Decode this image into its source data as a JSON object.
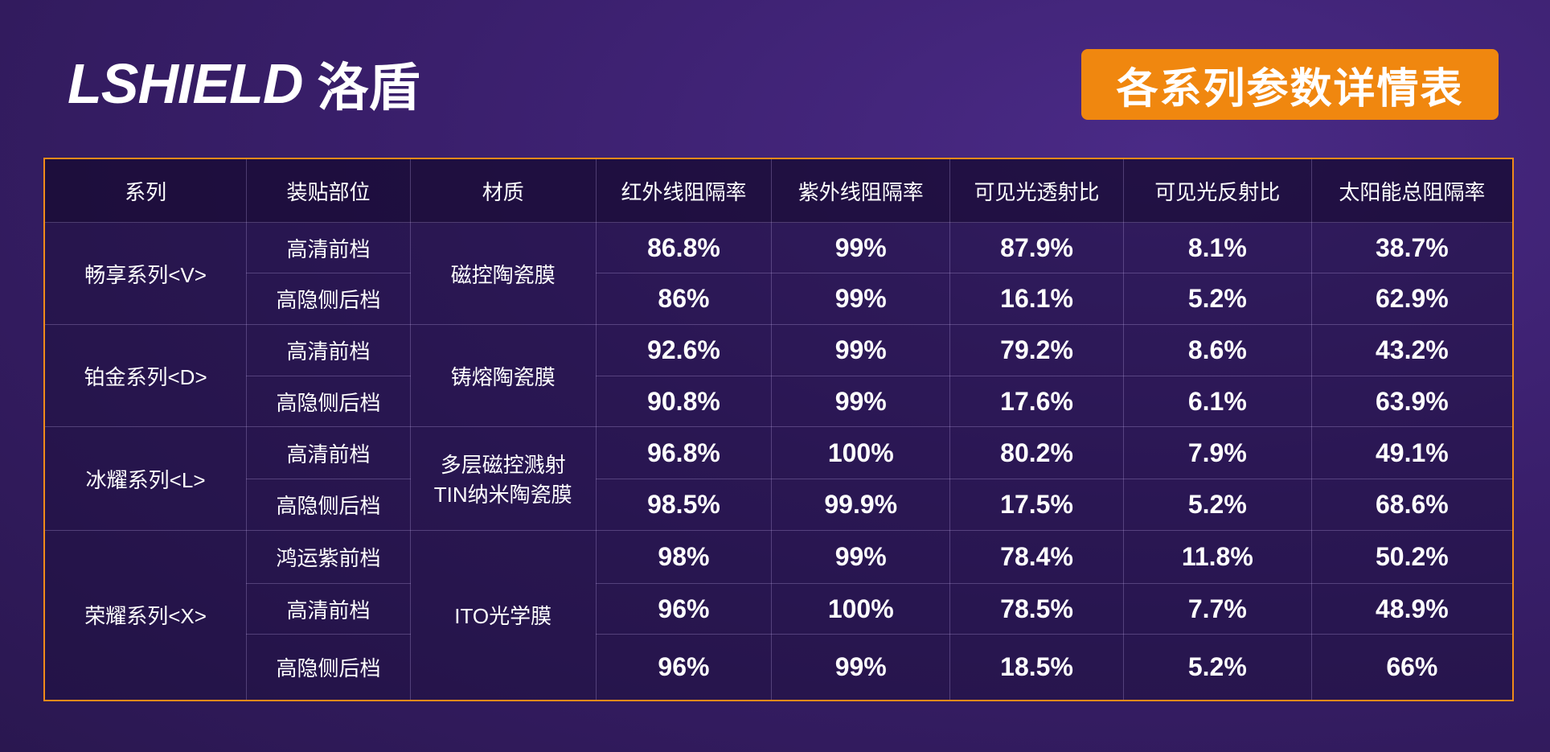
{
  "header": {
    "logo_text": "LSHIELD",
    "logo_cn": "洛盾",
    "title": "各系列参数详情表"
  },
  "table": {
    "columns": [
      "系列",
      "装贴部位",
      "材质",
      "红外线阻隔率",
      "紫外线阻隔率",
      "可见光透射比",
      "可见光反射比",
      "太阳能总阻隔率"
    ],
    "groups": [
      {
        "series": "畅享系列<V>",
        "material": [
          "磁控陶瓷膜"
        ],
        "rows": [
          {
            "position": "高清前档",
            "values": [
              "86.8%",
              "99%",
              "87.9%",
              "8.1%",
              "38.7%"
            ]
          },
          {
            "position": "高隐侧后档",
            "values": [
              "86%",
              "99%",
              "16.1%",
              "5.2%",
              "62.9%"
            ]
          }
        ]
      },
      {
        "series": "铂金系列<D>",
        "material": [
          "铸熔陶瓷膜"
        ],
        "rows": [
          {
            "position": "高清前档",
            "values": [
              "92.6%",
              "99%",
              "79.2%",
              "8.6%",
              "43.2%"
            ]
          },
          {
            "position": "高隐侧后档",
            "values": [
              "90.8%",
              "99%",
              "17.6%",
              "6.1%",
              "63.9%"
            ]
          }
        ]
      },
      {
        "series": "冰耀系列<L>",
        "material": [
          "多层磁控溅射",
          "TIN纳米陶瓷膜"
        ],
        "rows": [
          {
            "position": "高清前档",
            "values": [
              "96.8%",
              "100%",
              "80.2%",
              "7.9%",
              "49.1%"
            ]
          },
          {
            "position": "高隐侧后档",
            "values": [
              "98.5%",
              "99.9%",
              "17.5%",
              "5.2%",
              "68.6%"
            ]
          }
        ]
      },
      {
        "series": "荣耀系列<X>",
        "material": [
          "ITO光学膜"
        ],
        "rows": [
          {
            "position": "鸿运紫前档",
            "values": [
              "98%",
              "99%",
              "78.4%",
              "11.8%",
              "50.2%"
            ]
          },
          {
            "position": "高清前档",
            "values": [
              "96%",
              "100%",
              "78.5%",
              "7.7%",
              "48.9%"
            ]
          },
          {
            "position": "高隐侧后档",
            "values": [
              "96%",
              "99%",
              "18.5%",
              "5.2%",
              "66%"
            ]
          }
        ]
      }
    ]
  }
}
